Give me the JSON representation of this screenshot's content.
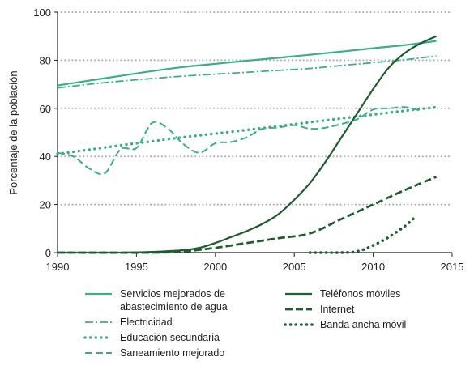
{
  "chart_data": {
    "type": "line",
    "xlabel": "",
    "ylabel": "Porcentaje de la población",
    "xlim": [
      1990,
      2015
    ],
    "ylim": [
      0,
      100
    ],
    "x_ticks": [
      1990,
      1995,
      2000,
      2005,
      2010,
      2015
    ],
    "y_ticks": [
      0,
      20,
      40,
      60,
      80,
      100
    ],
    "grid": "horizontal dotted",
    "legend_position": "bottom",
    "series": [
      {
        "name": "Servicios mejorados de abastecimiento de agua",
        "legend_lines": [
          "Servicios mejorados de",
          "abastecimiento de agua"
        ],
        "color": "#3dae8c",
        "style": "solid",
        "x": [
          1990,
          1992,
          1994,
          1996,
          1998,
          2000,
          2002,
          2004,
          2006,
          2008,
          2010,
          2012,
          2014
        ],
        "y": [
          69.5,
          71.5,
          73.5,
          75.5,
          77.2,
          78.5,
          79.8,
          81,
          82.3,
          83.6,
          85,
          86.3,
          88
        ]
      },
      {
        "name": "Electricidad",
        "legend_lines": [
          "Electricidad"
        ],
        "color": "#3dae8c",
        "style": "dashdot",
        "x": [
          1990,
          1992,
          1994,
          1996,
          1998,
          2000,
          2002,
          2004,
          2006,
          2008,
          2010,
          2012,
          2014
        ],
        "y": [
          68.5,
          70,
          71.3,
          72.4,
          73.4,
          74.2,
          75,
          75.8,
          76.6,
          77.8,
          79,
          80.2,
          81.8
        ]
      },
      {
        "name": "Educación secundaria",
        "legend_lines": [
          "Educación secundaria"
        ],
        "color": "#3dae8c",
        "style": "dotted",
        "x": [
          1990,
          1992,
          1994,
          1996,
          1998,
          2000,
          2002,
          2004,
          2006,
          2008,
          2010,
          2012,
          2014
        ],
        "y": [
          41,
          42.8,
          44.6,
          46.3,
          48,
          49.5,
          51,
          52.6,
          54.2,
          55.8,
          57.4,
          59,
          60.5
        ]
      },
      {
        "name": "Saneamiento mejorado",
        "legend_lines": [
          "Saneamiento mejorado"
        ],
        "color": "#3dae8c",
        "style": "dashed",
        "x": [
          1990,
          1991,
          1992,
          1993,
          1994,
          1995,
          1996,
          1997,
          1998,
          1999,
          2000,
          2001,
          2002,
          2003,
          2004,
          2005,
          2006,
          2007,
          2008,
          2009,
          2010,
          2011,
          2012,
          2013
        ],
        "y": [
          41.5,
          40,
          35,
          33,
          43,
          43.5,
          54,
          51.5,
          45,
          41.5,
          45.5,
          46,
          48,
          51.5,
          52,
          53,
          51.5,
          52,
          53.5,
          55.5,
          59.5,
          60,
          60.5,
          59
        ]
      },
      {
        "name": "Teléfonos móviles",
        "legend_lines": [
          "Teléfonos móviles"
        ],
        "color": "#1f5c2e",
        "style": "solid",
        "x": [
          1990,
          1992,
          1994,
          1996,
          1998,
          1999,
          2000,
          2001,
          2002,
          2003,
          2004,
          2005,
          2006,
          2007,
          2008,
          2009,
          2010,
          2011,
          2012,
          2013,
          2014
        ],
        "y": [
          0,
          0,
          0,
          0.3,
          1,
          2,
          4,
          6.5,
          9,
          12,
          16,
          22,
          29,
          38,
          48,
          58,
          68,
          77,
          83,
          87,
          90
        ]
      },
      {
        "name": "Internet",
        "legend_lines": [
          "Internet"
        ],
        "color": "#1f5c2e",
        "style": "dashed-thick",
        "x": [
          1990,
          1996,
          1998,
          2000,
          2002,
          2004,
          2006,
          2008,
          2010,
          2012,
          2014
        ],
        "y": [
          0,
          0,
          0.5,
          2,
          4,
          6,
          8,
          14,
          20,
          26,
          31.5
        ]
      },
      {
        "name": "Banda ancha móvil",
        "legend_lines": [
          "Banda ancha móvil"
        ],
        "color": "#1f5c2e",
        "style": "dotted-thick",
        "x": [
          2006,
          2007,
          2008,
          2009,
          2010,
          2011,
          2012,
          2012.7
        ],
        "y": [
          0,
          0,
          0,
          0.5,
          3,
          6.5,
          11,
          15
        ]
      }
    ]
  }
}
